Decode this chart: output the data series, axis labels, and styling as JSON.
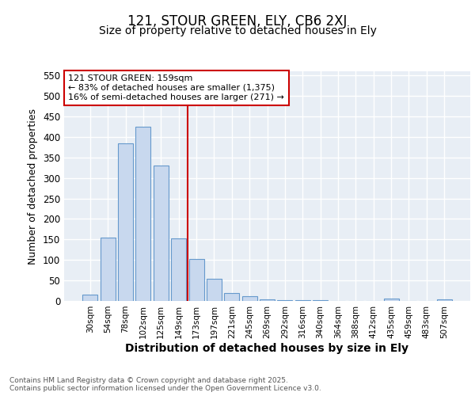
{
  "title1": "121, STOUR GREEN, ELY, CB6 2XJ",
  "title2": "Size of property relative to detached houses in Ely",
  "xlabel": "Distribution of detached houses by size in Ely",
  "ylabel": "Number of detached properties",
  "categories": [
    "30sqm",
    "54sqm",
    "78sqm",
    "102sqm",
    "125sqm",
    "149sqm",
    "173sqm",
    "197sqm",
    "221sqm",
    "245sqm",
    "269sqm",
    "292sqm",
    "316sqm",
    "340sqm",
    "364sqm",
    "388sqm",
    "412sqm",
    "435sqm",
    "459sqm",
    "483sqm",
    "507sqm"
  ],
  "values": [
    15,
    155,
    385,
    425,
    330,
    153,
    102,
    55,
    20,
    12,
    3,
    2,
    1,
    1,
    0,
    0,
    0,
    5,
    0,
    0,
    3
  ],
  "bar_color": "#c8d8ee",
  "bar_edge_color": "#6699cc",
  "vline_color": "#cc0000",
  "ylim": [
    0,
    560
  ],
  "yticks": [
    0,
    50,
    100,
    150,
    200,
    250,
    300,
    350,
    400,
    450,
    500,
    550
  ],
  "annotation_text": "121 STOUR GREEN: 159sqm\n← 83% of detached houses are smaller (1,375)\n16% of semi-detached houses are larger (271) →",
  "annotation_box_color": "#ffffff",
  "annotation_box_edge": "#cc0000",
  "plot_bg_color": "#e8eef5",
  "grid_color": "#ffffff",
  "fig_bg_color": "#ffffff",
  "footer_text": "Contains HM Land Registry data © Crown copyright and database right 2025.\nContains public sector information licensed under the Open Government Licence v3.0.",
  "title1_fontsize": 12,
  "title2_fontsize": 10,
  "xlabel_fontsize": 10,
  "ylabel_fontsize": 9
}
